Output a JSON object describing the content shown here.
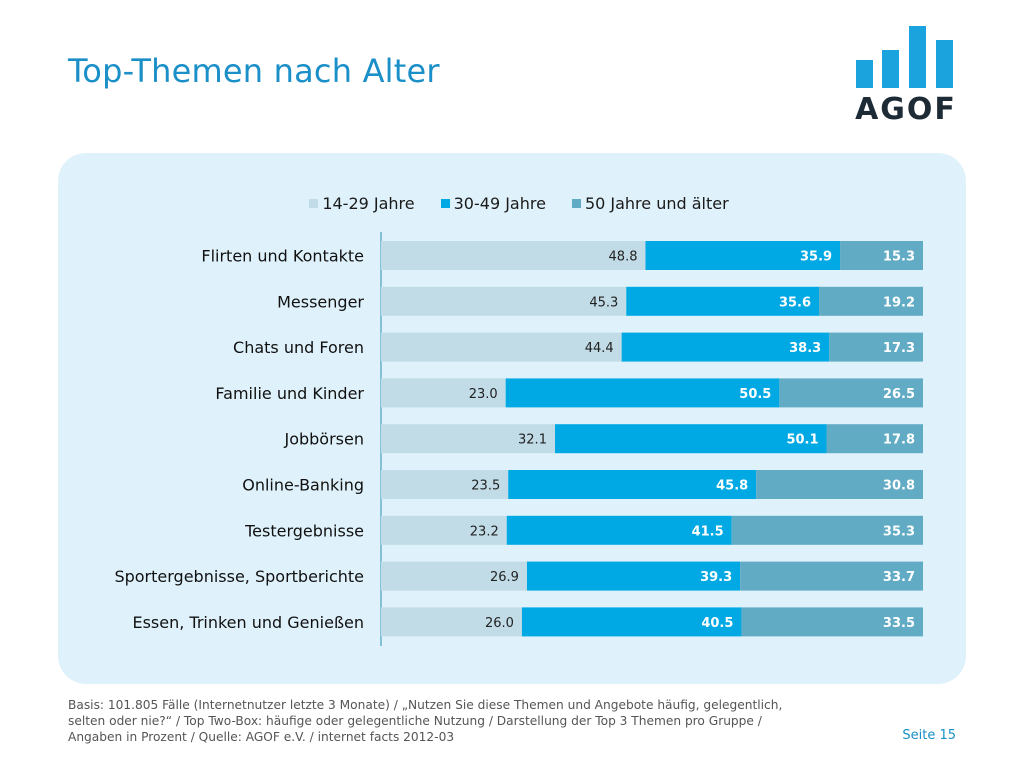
{
  "page": {
    "title": "Top-Themen nach Alter",
    "logo_text": "AGOF",
    "footer_lines": [
      "Basis: 101.805 Fälle (Internetnutzer letzte 3 Monate) / „Nutzen Sie diese Themen und Angebote häufig, gelegentlich,",
      "selten oder nie?“ / Top Two-Box: häufige oder gelegentliche Nutzung / Darstellung der Top 3 Themen pro Gruppe /",
      "Angaben in Prozent / Quelle: AGOF e.V. / internet facts 2012-03"
    ],
    "page_number": "Seite 15"
  },
  "colors": {
    "title": "#1a8fc8",
    "logo_bars": "#1aa3dc",
    "series_1": "#c1dce6",
    "series_2": "#00a9e4",
    "series_3": "#62abc4",
    "panel": "#dff2fb"
  },
  "chart_data": {
    "type": "bar",
    "orientation": "horizontal",
    "stacked": "100%",
    "categories": [
      "Flirten und Kontakte",
      "Messenger",
      "Chats und Foren",
      "Familie und Kinder",
      "Jobbörsen",
      "Online-Banking",
      "Testergebnisse",
      "Sportergebnisse, Sportberichte",
      "Essen, Trinken und Genießen"
    ],
    "series": [
      {
        "name": "14-29 Jahre",
        "values": [
          48.8,
          45.3,
          44.4,
          23.0,
          32.1,
          23.5,
          23.2,
          26.9,
          26.0
        ]
      },
      {
        "name": "30-49 Jahre",
        "values": [
          35.9,
          35.6,
          38.3,
          50.5,
          50.1,
          45.8,
          41.5,
          39.3,
          40.5
        ]
      },
      {
        "name": "50 Jahre und älter",
        "values": [
          15.3,
          19.2,
          17.3,
          26.5,
          17.8,
          30.8,
          35.3,
          33.7,
          33.5
        ]
      }
    ],
    "value_labels": true,
    "legend_position": "top",
    "xlim": [
      0,
      100
    ]
  }
}
